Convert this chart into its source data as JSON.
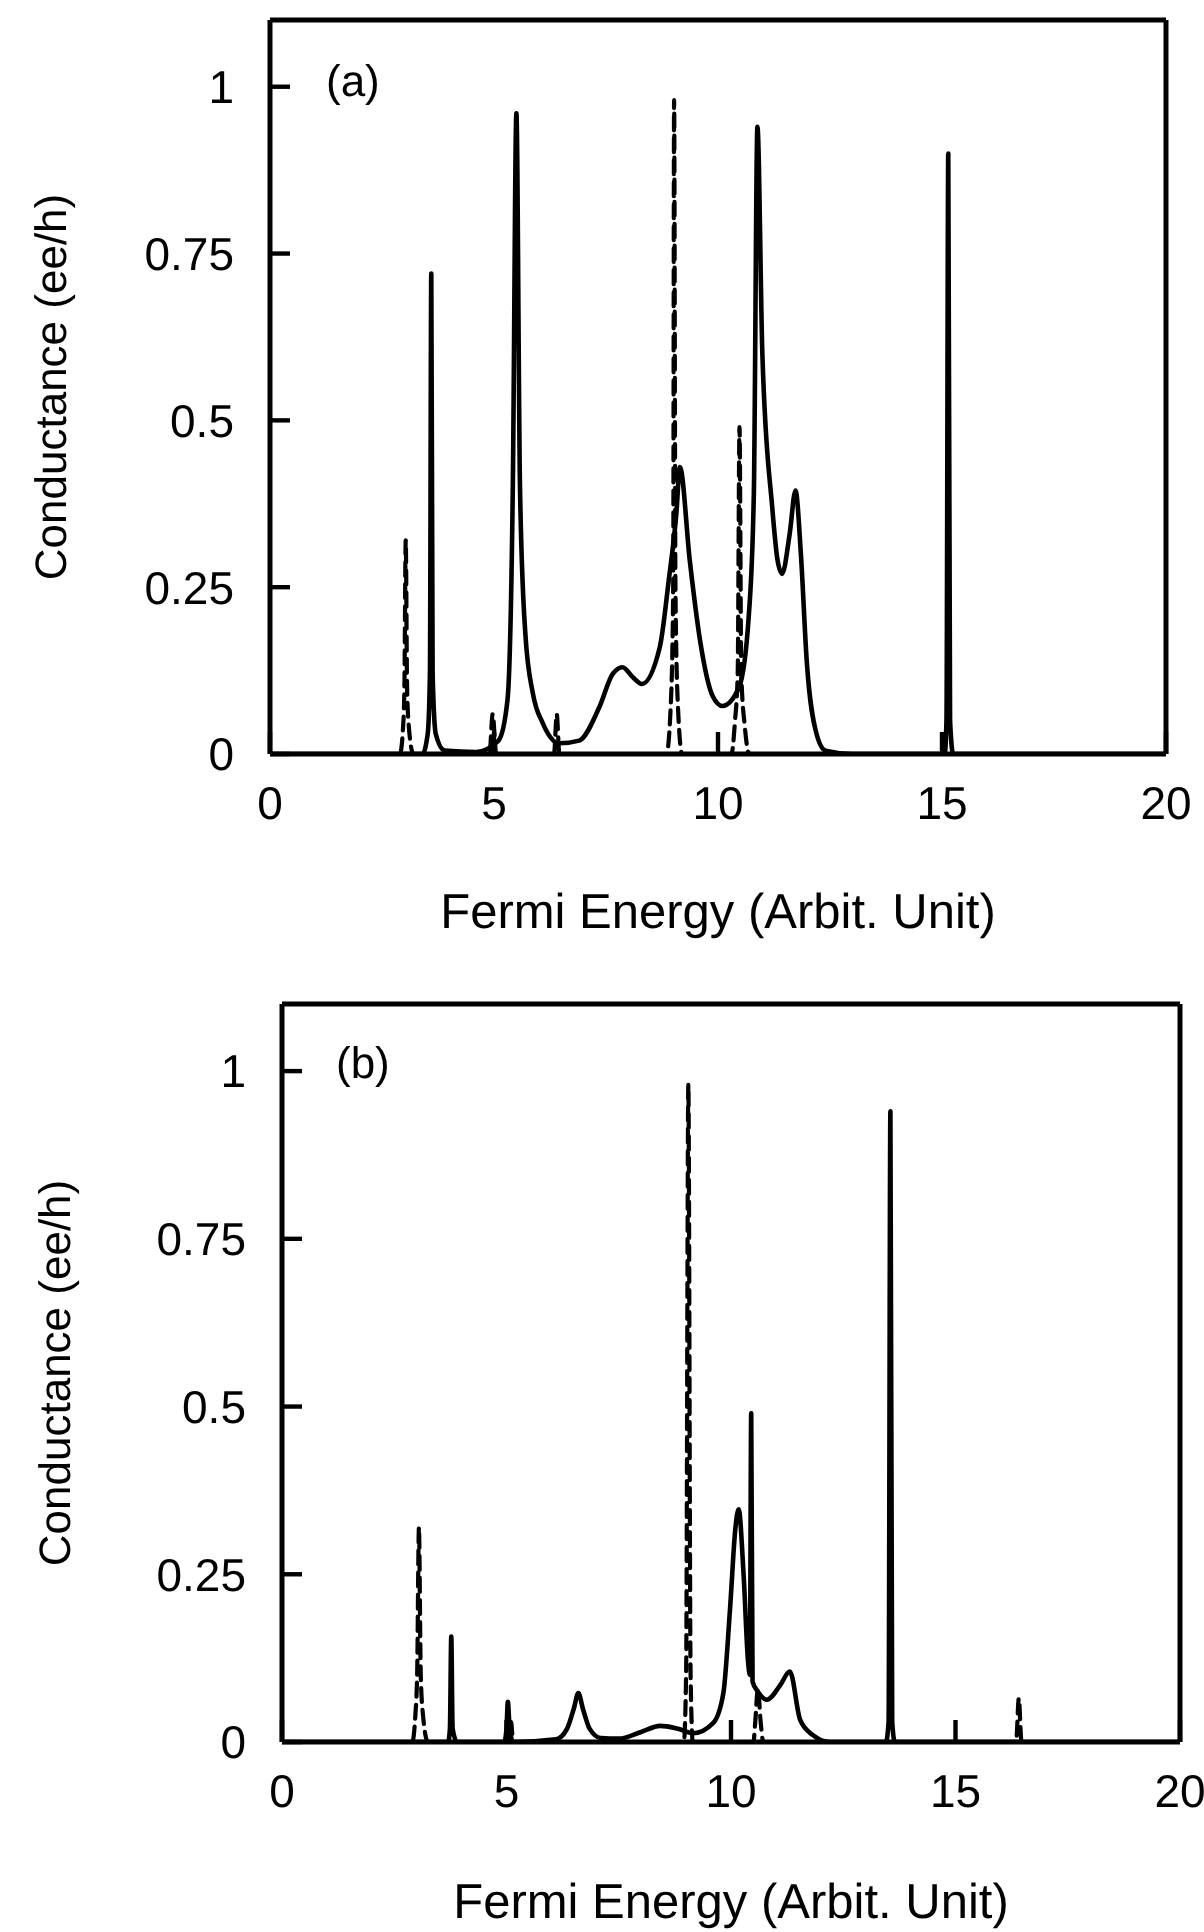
{
  "chart_data": [
    {
      "type": "line",
      "xlabel": "Fermi Energy (Arbit. Unit)",
      "ylabel": "Conductance (ee/h)",
      "annotations": [
        "(a)"
      ],
      "xlim": [
        0,
        20
      ],
      "xticks": [
        0,
        5,
        10,
        15,
        20
      ],
      "ylim": [
        0,
        1.1
      ],
      "yticks": [
        0,
        0.25,
        0.5,
        0.75,
        1
      ],
      "series": [
        {
          "color": "#000000",
          "line_style": "solid",
          "x": [
            0,
            3.4,
            3.52,
            3.57,
            3.6,
            3.63,
            3.7,
            3.9,
            4.6,
            5.1,
            5.3,
            5.42,
            5.5,
            5.58,
            5.7,
            5.87,
            6.09,
            6.46,
            6.9,
            7.35,
            7.65,
            7.87,
            8.1,
            8.3,
            8.7,
            8.9,
            9.07,
            9.15,
            9.37,
            9.6,
            9.88,
            10.1,
            10.47,
            10.69,
            10.8,
            10.88,
            10.99,
            11.21,
            11.33,
            11.43,
            11.6,
            11.73,
            11.85,
            11.98,
            12.2,
            12.4,
            13,
            15.06,
            15.1,
            15.14,
            15.18,
            15.25,
            20
          ],
          "values": [
            0,
            0,
            0.03,
            0.12,
            0.72,
            0.12,
            0.03,
            0.005,
            0.003,
            0.02,
            0.08,
            0.4,
            0.96,
            0.4,
            0.18,
            0.09,
            0.046,
            0.016,
            0.02,
            0.07,
            0.12,
            0.13,
            0.115,
            0.105,
            0.16,
            0.26,
            0.36,
            0.43,
            0.29,
            0.17,
            0.087,
            0.072,
            0.1,
            0.21,
            0.39,
            0.94,
            0.6,
            0.37,
            0.29,
            0.27,
            0.33,
            0.395,
            0.3,
            0.14,
            0.03,
            0.005,
            0,
            0,
            0.05,
            0.9,
            0.05,
            0,
            0
          ]
        },
        {
          "color": "#000000",
          "line_style": "dashed",
          "x": [
            0,
            2.9,
            2.97,
            3,
            3.03,
            3.06,
            3.1,
            3.2,
            4.9,
            4.97,
            5.05,
            6.34,
            6.4,
            6.46,
            8.85,
            8.95,
            9,
            9.02,
            9.05,
            9.1,
            9.2,
            10.3,
            10.38,
            10.44,
            10.48,
            10.52,
            10.6,
            10.7,
            20
          ],
          "values": [
            0,
            0,
            0.04,
            0.1,
            0.32,
            0.1,
            0.04,
            0,
            0,
            0.06,
            0,
            0,
            0.06,
            0,
            0,
            0.08,
            0.25,
            0.98,
            0.25,
            0.08,
            0,
            0,
            0.05,
            0.12,
            0.49,
            0.12,
            0.04,
            0,
            0
          ]
        }
      ]
    },
    {
      "type": "line",
      "xlabel": "Fermi Energy (Arbit. Unit)",
      "ylabel": "Conductance (ee/h)",
      "annotations": [
        "(b)"
      ],
      "xlim": [
        0,
        20
      ],
      "xticks": [
        0,
        5,
        10,
        15,
        20
      ],
      "ylim": [
        0,
        1.1
      ],
      "yticks": [
        0,
        0.25,
        0.5,
        0.75,
        1
      ],
      "series": [
        {
          "color": "#000000",
          "line_style": "solid",
          "x": [
            0,
            3.7,
            3.74,
            3.77,
            3.8,
            3.9,
            4.95,
            5,
            5.03,
            5.07,
            5.15,
            6.1,
            6.35,
            6.5,
            6.6,
            6.7,
            6.85,
            7.1,
            7.5,
            8,
            8.42,
            8.8,
            9.16,
            9.6,
            9.83,
            9.98,
            10.1,
            10.17,
            10.28,
            10.38,
            10.42,
            10.45,
            10.48,
            10.6,
            10.8,
            11.09,
            11.31,
            11.54,
            11.83,
            12.2,
            13.45,
            13.51,
            13.55,
            13.59,
            13.65,
            20
          ],
          "values": [
            0,
            0,
            0.02,
            0.157,
            0.02,
            0,
            0,
            0.02,
            0.06,
            0.02,
            0,
            0.004,
            0.02,
            0.05,
            0.073,
            0.05,
            0.02,
            0.006,
            0.005,
            0.015,
            0.024,
            0.02,
            0.013,
            0.028,
            0.073,
            0.2,
            0.32,
            0.347,
            0.25,
            0.12,
            0.1,
            0.49,
            0.09,
            0.075,
            0.063,
            0.084,
            0.105,
            0.033,
            0.01,
            0,
            0,
            0.03,
            0.94,
            0.03,
            0,
            0
          ]
        },
        {
          "color": "#000000",
          "line_style": "dashed",
          "x": [
            0,
            2.9,
            2.97,
            3.01,
            3.05,
            3.09,
            3.14,
            3.25,
            5.05,
            5.1,
            5.15,
            8.95,
            9,
            9.05,
            9.1,
            9.15,
            10.5,
            10.54,
            10.6,
            10.66,
            10.72,
            16.35,
            16.41,
            16.47,
            20
          ],
          "values": [
            0,
            0,
            0.04,
            0.1,
            0.32,
            0.1,
            0.04,
            0,
            0,
            0.03,
            0,
            0,
            0.1,
            0.98,
            0.1,
            0,
            0,
            0.03,
            0.08,
            0.03,
            0,
            0,
            0.065,
            0,
            0
          ]
        }
      ]
    }
  ]
}
